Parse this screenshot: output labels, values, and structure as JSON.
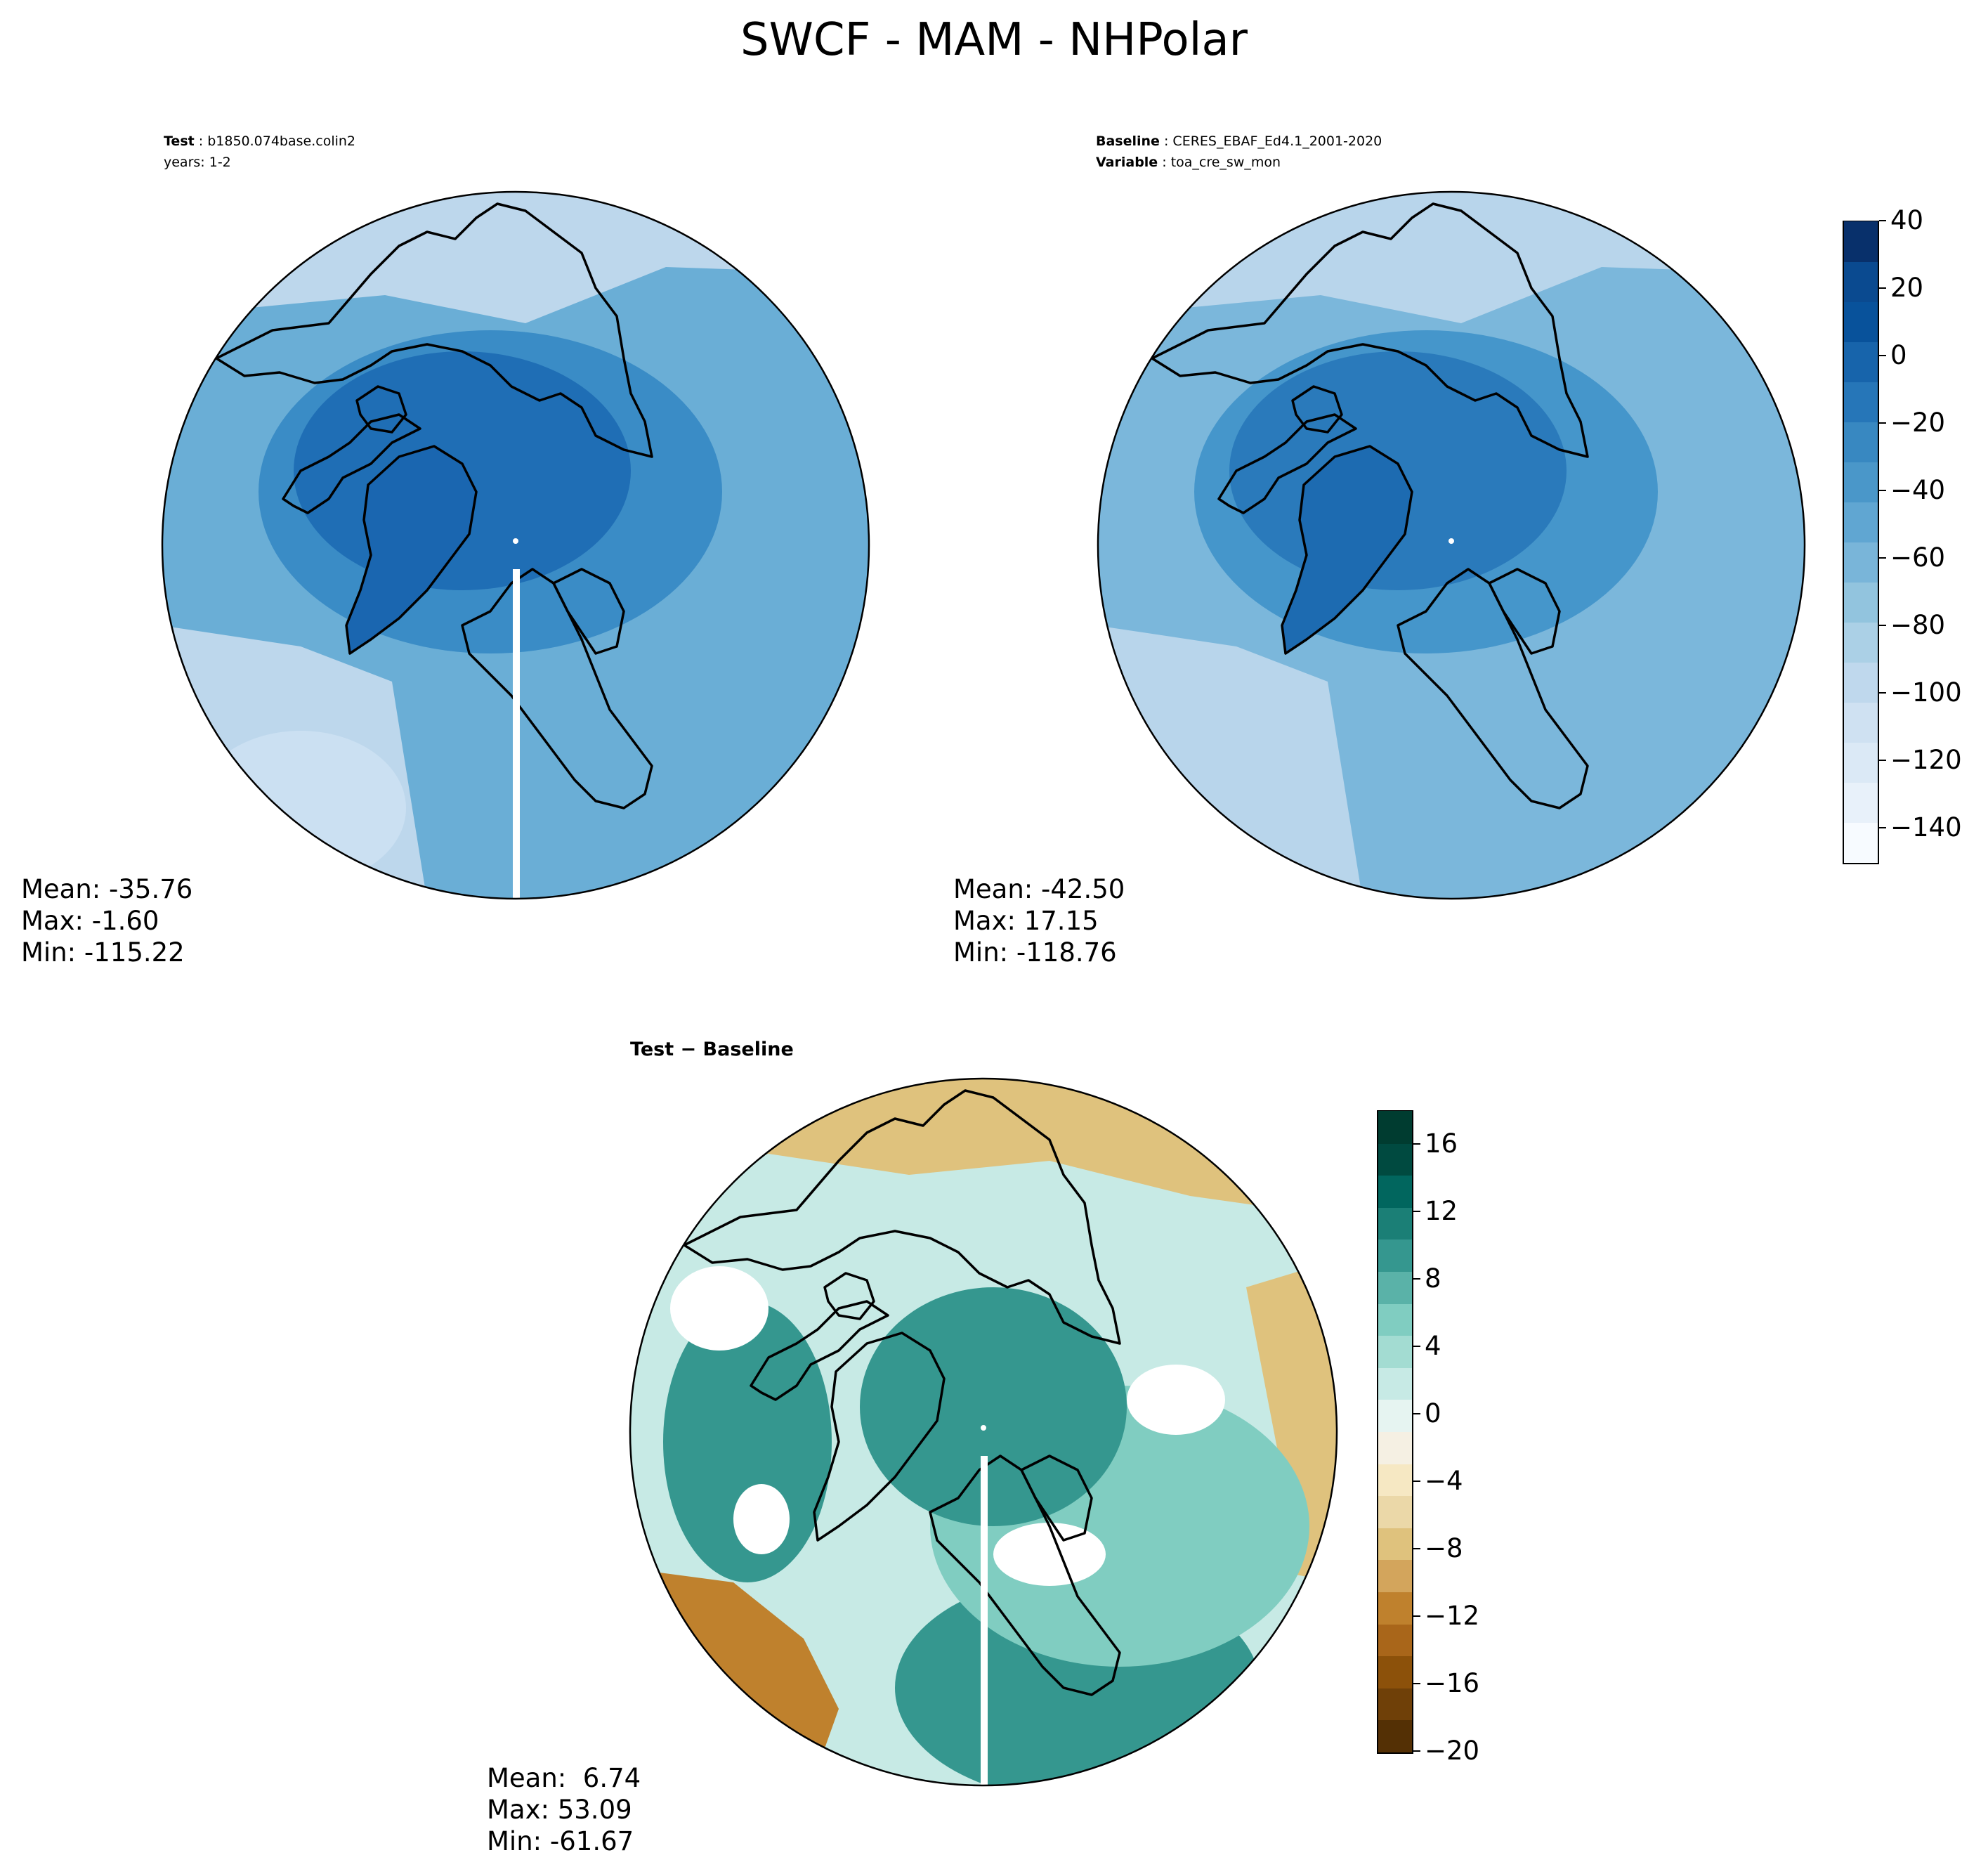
{
  "title": "SWCF - MAM - NHPolar",
  "test_panel": {
    "header": {
      "label": "Test",
      "value": "b1850.074base.colin2",
      "line2": "years: 1-2"
    },
    "stats": {
      "mean": "Mean: -35.76",
      "max": "Max: -1.60",
      "min": "Min: -115.22"
    }
  },
  "baseline_panel": {
    "header": {
      "label": "Baseline",
      "value": "CERES_EBAF_Ed4.1_2001-2020",
      "label2": "Variable",
      "value2": "toa_cre_sw_mon"
    },
    "stats": {
      "mean": "Mean: -42.50",
      "max": "Max: 17.15",
      "min": "Min: -118.76"
    }
  },
  "diff_panel": {
    "header": "Test − Baseline",
    "stats": {
      "mean": "Mean:  6.74",
      "max": "Max: 53.09",
      "min": "Min: -61.67"
    }
  },
  "colorbar_main": {
    "ticks": [
      "40",
      "20",
      "0",
      "−20",
      "−40",
      "−60",
      "−80",
      "−100",
      "−120",
      "−140"
    ],
    "tick_values": [
      40,
      20,
      0,
      -20,
      -40,
      -60,
      -80,
      -100,
      -120,
      -140
    ],
    "range": [
      -150,
      40
    ],
    "colors": [
      "#f7fbff",
      "#e8f1fa",
      "#dbe9f6",
      "#cfe1f2",
      "#bfd8ed",
      "#abd0e6",
      "#92c4de",
      "#79b5d9",
      "#60a6d2",
      "#4a97c9",
      "#3888c1",
      "#2676b8",
      "#1764ab",
      "#08529b",
      "#0a4a90",
      "#08306b"
    ]
  },
  "colorbar_diff": {
    "ticks": [
      "16",
      "12",
      "8",
      "4",
      "0",
      "−4",
      "−8",
      "−12",
      "−16",
      "−20"
    ],
    "tick_values": [
      16,
      12,
      8,
      4,
      0,
      -4,
      -8,
      -12,
      -16,
      -20
    ],
    "range": [
      -20,
      18
    ],
    "colors": [
      "#543005",
      "#6f4008",
      "#8c510a",
      "#a9661a",
      "#bf812d",
      "#d3a55c",
      "#dfc27d",
      "#ebd8a8",
      "#f6e8c3",
      "#f5f0e3",
      "#e6f4f1",
      "#c7eae5",
      "#a3dcd2",
      "#80cdc1",
      "#5ab2a8",
      "#35978f",
      "#1b7f76",
      "#01665e",
      "#004a40",
      "#003c30"
    ]
  },
  "map_colors": {
    "test": [
      "#bdd7ec",
      "#6aaed6",
      "#3a8cc6",
      "#1f6eb5",
      "#1a66b0",
      "#cbe0f2"
    ],
    "baseline": [
      "#b8d5eb",
      "#7bb7db",
      "#4596cb",
      "#2a7abb",
      "#1d6bb1"
    ],
    "diff": [
      "#35978f",
      "#80cdc1",
      "#ffffff",
      "#bf812d",
      "#dfc27d",
      "#c7eae5"
    ]
  }
}
